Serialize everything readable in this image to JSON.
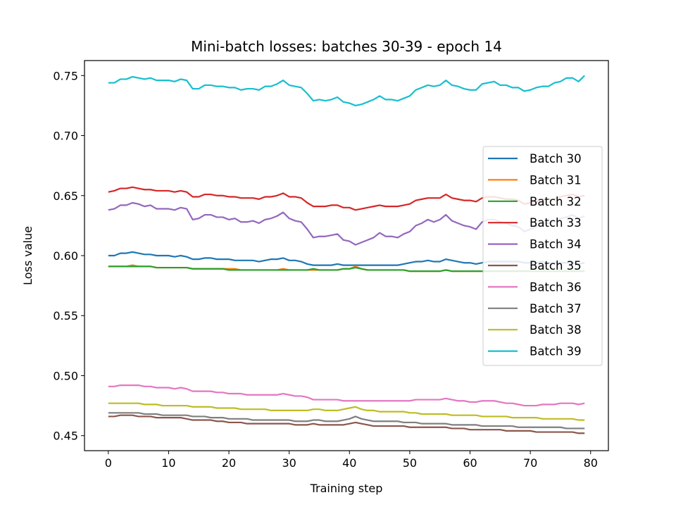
{
  "chart_data": {
    "type": "line",
    "title": "Mini-batch losses: batches 30-39 - epoch 14",
    "xlabel": "Training step",
    "ylabel": "Loss value",
    "xlim": [
      -3.95,
      82.95
    ],
    "ylim": [
      0.4375,
      0.7625
    ],
    "xticks": [
      0,
      10,
      20,
      30,
      40,
      50,
      60,
      70,
      80
    ],
    "yticks": [
      0.45,
      0.5,
      0.55,
      0.6,
      0.65,
      0.7,
      0.75
    ],
    "ytick_labels": [
      "0.45",
      "0.50",
      "0.55",
      "0.60",
      "0.65",
      "0.70",
      "0.75"
    ],
    "grid": false,
    "legend_position": "center-right",
    "series": [
      {
        "name": "Batch 30",
        "color": "#1f77b4",
        "values": [
          0.6,
          0.6,
          0.602,
          0.602,
          0.603,
          0.602,
          0.601,
          0.601,
          0.6,
          0.6,
          0.6,
          0.599,
          0.6,
          0.599,
          0.597,
          0.597,
          0.598,
          0.598,
          0.597,
          0.597,
          0.597,
          0.596,
          0.596,
          0.596,
          0.596,
          0.595,
          0.596,
          0.597,
          0.597,
          0.598,
          0.596,
          0.596,
          0.595,
          0.593,
          0.592,
          0.592,
          0.592,
          0.592,
          0.593,
          0.592,
          0.592,
          0.592,
          0.592,
          0.592,
          0.592,
          0.592,
          0.592,
          0.592,
          0.592,
          0.593,
          0.594,
          0.595,
          0.595,
          0.596,
          0.595,
          0.595,
          0.597,
          0.596,
          0.595,
          0.594,
          0.594,
          0.593,
          0.594,
          0.595,
          0.595,
          0.595,
          0.595,
          0.595,
          0.595,
          0.594,
          0.594,
          0.594,
          0.595,
          0.594,
          0.594,
          0.594,
          0.594,
          0.594,
          0.593,
          0.594
        ]
      },
      {
        "name": "Batch 31",
        "color": "#ff7f0e",
        "values": [
          0.591,
          0.591,
          0.591,
          0.591,
          0.592,
          0.591,
          0.591,
          0.591,
          0.59,
          0.59,
          0.59,
          0.59,
          0.59,
          0.59,
          0.589,
          0.589,
          0.589,
          0.589,
          0.589,
          0.589,
          0.589,
          0.589,
          0.588,
          0.588,
          0.588,
          0.588,
          0.588,
          0.588,
          0.588,
          0.589,
          0.588,
          0.588,
          0.588,
          0.588,
          0.588,
          0.588,
          0.588,
          0.588,
          0.588,
          0.589,
          0.589,
          0.591,
          0.589,
          0.588,
          0.588,
          0.588,
          0.588,
          0.588,
          0.588,
          0.588,
          0.587,
          0.587,
          0.587,
          0.587,
          0.587,
          0.587,
          0.588,
          0.587,
          0.587,
          0.587,
          0.587,
          0.587,
          0.587,
          0.587,
          0.587,
          0.587,
          0.587,
          0.587,
          0.587,
          0.587,
          0.587,
          0.587,
          0.587,
          0.587,
          0.587,
          0.587,
          0.587,
          0.587,
          0.587,
          0.587
        ]
      },
      {
        "name": "Batch 32",
        "color": "#2ca02c",
        "values": [
          0.591,
          0.591,
          0.591,
          0.591,
          0.591,
          0.591,
          0.591,
          0.591,
          0.59,
          0.59,
          0.59,
          0.59,
          0.59,
          0.59,
          0.589,
          0.589,
          0.589,
          0.589,
          0.589,
          0.589,
          0.588,
          0.588,
          0.588,
          0.588,
          0.588,
          0.588,
          0.588,
          0.588,
          0.588,
          0.588,
          0.588,
          0.588,
          0.588,
          0.588,
          0.589,
          0.588,
          0.588,
          0.588,
          0.588,
          0.589,
          0.589,
          0.59,
          0.589,
          0.588,
          0.588,
          0.588,
          0.588,
          0.588,
          0.588,
          0.588,
          0.587,
          0.587,
          0.587,
          0.587,
          0.587,
          0.587,
          0.588,
          0.587,
          0.587,
          0.587,
          0.587,
          0.587,
          0.587,
          0.587,
          0.587,
          0.587,
          0.587,
          0.587,
          0.587,
          0.587,
          0.587,
          0.587,
          0.587,
          0.587,
          0.587,
          0.587,
          0.587,
          0.587,
          0.587,
          0.587
        ]
      },
      {
        "name": "Batch 33",
        "color": "#d62728",
        "values": [
          0.653,
          0.654,
          0.656,
          0.656,
          0.657,
          0.656,
          0.655,
          0.655,
          0.654,
          0.654,
          0.654,
          0.653,
          0.654,
          0.653,
          0.649,
          0.649,
          0.651,
          0.651,
          0.65,
          0.65,
          0.649,
          0.649,
          0.648,
          0.648,
          0.648,
          0.647,
          0.649,
          0.649,
          0.65,
          0.652,
          0.649,
          0.649,
          0.648,
          0.644,
          0.641,
          0.641,
          0.641,
          0.642,
          0.642,
          0.64,
          0.64,
          0.638,
          0.639,
          0.64,
          0.641,
          0.642,
          0.641,
          0.641,
          0.641,
          0.642,
          0.643,
          0.646,
          0.647,
          0.648,
          0.648,
          0.648,
          0.651,
          0.648,
          0.647,
          0.646,
          0.646,
          0.645,
          0.648,
          0.649,
          0.649,
          0.648,
          0.647,
          0.647,
          0.646,
          0.643,
          0.644,
          0.645,
          0.647,
          0.647,
          0.647,
          0.649,
          0.65,
          0.651,
          0.649,
          0.65
        ]
      },
      {
        "name": "Batch 34",
        "color": "#9467bd",
        "values": [
          0.638,
          0.639,
          0.642,
          0.642,
          0.644,
          0.643,
          0.641,
          0.642,
          0.639,
          0.639,
          0.639,
          0.638,
          0.64,
          0.639,
          0.63,
          0.631,
          0.634,
          0.634,
          0.632,
          0.632,
          0.63,
          0.631,
          0.628,
          0.628,
          0.629,
          0.627,
          0.63,
          0.631,
          0.633,
          0.636,
          0.631,
          0.629,
          0.628,
          0.622,
          0.615,
          0.616,
          0.616,
          0.617,
          0.618,
          0.613,
          0.612,
          0.609,
          0.611,
          0.613,
          0.615,
          0.619,
          0.616,
          0.616,
          0.615,
          0.618,
          0.62,
          0.625,
          0.627,
          0.63,
          0.628,
          0.63,
          0.634,
          0.629,
          0.627,
          0.625,
          0.624,
          0.622,
          0.628,
          0.63,
          0.63,
          0.628,
          0.627,
          0.625,
          0.624,
          0.62,
          0.622,
          0.624,
          0.627,
          0.627,
          0.628,
          0.631,
          0.632,
          0.634,
          0.631,
          0.633
        ]
      },
      {
        "name": "Batch 35",
        "color": "#8c564b",
        "values": [
          0.466,
          0.466,
          0.467,
          0.467,
          0.467,
          0.466,
          0.466,
          0.466,
          0.465,
          0.465,
          0.465,
          0.465,
          0.465,
          0.464,
          0.463,
          0.463,
          0.463,
          0.463,
          0.462,
          0.462,
          0.461,
          0.461,
          0.461,
          0.46,
          0.46,
          0.46,
          0.46,
          0.46,
          0.46,
          0.46,
          0.46,
          0.459,
          0.459,
          0.459,
          0.46,
          0.459,
          0.459,
          0.459,
          0.459,
          0.459,
          0.46,
          0.461,
          0.46,
          0.459,
          0.458,
          0.458,
          0.458,
          0.458,
          0.458,
          0.458,
          0.457,
          0.457,
          0.457,
          0.457,
          0.457,
          0.457,
          0.457,
          0.456,
          0.456,
          0.456,
          0.455,
          0.455,
          0.455,
          0.455,
          0.455,
          0.455,
          0.454,
          0.454,
          0.454,
          0.454,
          0.454,
          0.453,
          0.453,
          0.453,
          0.453,
          0.453,
          0.453,
          0.453,
          0.452,
          0.452
        ]
      },
      {
        "name": "Batch 36",
        "color": "#e377c2",
        "values": [
          0.491,
          0.491,
          0.492,
          0.492,
          0.492,
          0.492,
          0.491,
          0.491,
          0.49,
          0.49,
          0.49,
          0.489,
          0.49,
          0.489,
          0.487,
          0.487,
          0.487,
          0.487,
          0.486,
          0.486,
          0.485,
          0.485,
          0.485,
          0.484,
          0.484,
          0.484,
          0.484,
          0.484,
          0.484,
          0.485,
          0.484,
          0.483,
          0.483,
          0.482,
          0.48,
          0.48,
          0.48,
          0.48,
          0.48,
          0.479,
          0.479,
          0.479,
          0.479,
          0.479,
          0.479,
          0.479,
          0.479,
          0.479,
          0.479,
          0.479,
          0.479,
          0.48,
          0.48,
          0.48,
          0.48,
          0.48,
          0.481,
          0.48,
          0.479,
          0.479,
          0.478,
          0.478,
          0.479,
          0.479,
          0.479,
          0.478,
          0.477,
          0.477,
          0.476,
          0.475,
          0.475,
          0.475,
          0.476,
          0.476,
          0.476,
          0.477,
          0.477,
          0.477,
          0.476,
          0.477
        ]
      },
      {
        "name": "Batch 37",
        "color": "#7f7f7f",
        "values": [
          0.469,
          0.469,
          0.469,
          0.469,
          0.469,
          0.469,
          0.468,
          0.468,
          0.468,
          0.467,
          0.467,
          0.467,
          0.467,
          0.467,
          0.466,
          0.466,
          0.466,
          0.465,
          0.465,
          0.465,
          0.464,
          0.464,
          0.464,
          0.464,
          0.463,
          0.463,
          0.463,
          0.463,
          0.463,
          0.463,
          0.463,
          0.462,
          0.462,
          0.462,
          0.463,
          0.463,
          0.462,
          0.462,
          0.462,
          0.463,
          0.464,
          0.466,
          0.464,
          0.463,
          0.462,
          0.462,
          0.462,
          0.462,
          0.462,
          0.461,
          0.461,
          0.461,
          0.46,
          0.46,
          0.46,
          0.46,
          0.46,
          0.459,
          0.459,
          0.459,
          0.459,
          0.459,
          0.458,
          0.458,
          0.458,
          0.458,
          0.458,
          0.458,
          0.457,
          0.457,
          0.457,
          0.457,
          0.457,
          0.457,
          0.457,
          0.457,
          0.456,
          0.456,
          0.456,
          0.456
        ]
      },
      {
        "name": "Batch 38",
        "color": "#bcbd22",
        "values": [
          0.477,
          0.477,
          0.477,
          0.477,
          0.477,
          0.477,
          0.476,
          0.476,
          0.476,
          0.475,
          0.475,
          0.475,
          0.475,
          0.475,
          0.474,
          0.474,
          0.474,
          0.474,
          0.473,
          0.473,
          0.473,
          0.473,
          0.472,
          0.472,
          0.472,
          0.472,
          0.472,
          0.471,
          0.471,
          0.471,
          0.471,
          0.471,
          0.471,
          0.471,
          0.472,
          0.472,
          0.471,
          0.471,
          0.471,
          0.472,
          0.473,
          0.474,
          0.472,
          0.471,
          0.471,
          0.47,
          0.47,
          0.47,
          0.47,
          0.47,
          0.469,
          0.469,
          0.468,
          0.468,
          0.468,
          0.468,
          0.468,
          0.467,
          0.467,
          0.467,
          0.467,
          0.467,
          0.466,
          0.466,
          0.466,
          0.466,
          0.466,
          0.465,
          0.465,
          0.465,
          0.465,
          0.465,
          0.464,
          0.464,
          0.464,
          0.464,
          0.464,
          0.464,
          0.463,
          0.463
        ]
      },
      {
        "name": "Batch 39",
        "color": "#17becf",
        "values": [
          0.744,
          0.744,
          0.747,
          0.747,
          0.749,
          0.748,
          0.747,
          0.748,
          0.746,
          0.746,
          0.746,
          0.745,
          0.747,
          0.746,
          0.739,
          0.739,
          0.742,
          0.742,
          0.741,
          0.741,
          0.74,
          0.74,
          0.738,
          0.739,
          0.739,
          0.738,
          0.741,
          0.741,
          0.743,
          0.746,
          0.742,
          0.741,
          0.74,
          0.735,
          0.729,
          0.73,
          0.729,
          0.73,
          0.732,
          0.728,
          0.727,
          0.725,
          0.726,
          0.728,
          0.73,
          0.733,
          0.73,
          0.73,
          0.729,
          0.731,
          0.733,
          0.738,
          0.74,
          0.742,
          0.741,
          0.742,
          0.746,
          0.742,
          0.741,
          0.739,
          0.738,
          0.738,
          0.743,
          0.744,
          0.745,
          0.742,
          0.742,
          0.74,
          0.74,
          0.737,
          0.738,
          0.74,
          0.741,
          0.741,
          0.744,
          0.745,
          0.748,
          0.748,
          0.745,
          0.75
        ]
      }
    ]
  }
}
